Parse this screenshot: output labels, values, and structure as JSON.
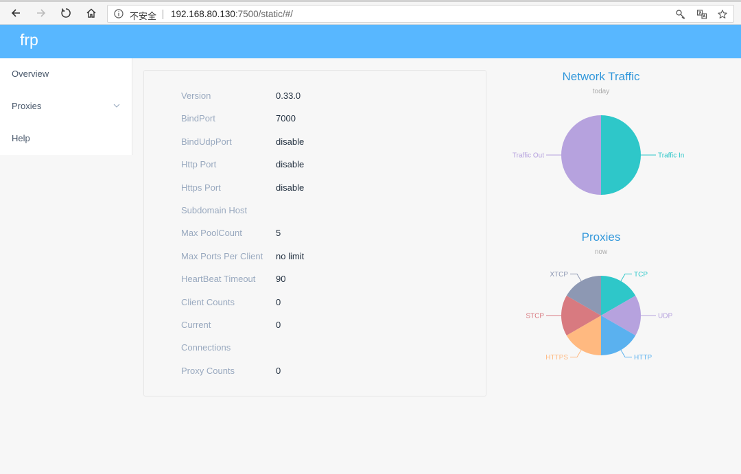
{
  "browser": {
    "security_label": "不安全",
    "url_host": "192.168.80.130",
    "url_rest": ":7500/static/#/"
  },
  "app": {
    "brand": "frp",
    "accent": "#58b7ff"
  },
  "sidebar": {
    "items": [
      {
        "label": "Overview"
      },
      {
        "label": "Proxies",
        "has_submenu": true
      },
      {
        "label": "Help"
      }
    ]
  },
  "server_info": [
    {
      "key": "Version",
      "value": "0.33.0"
    },
    {
      "key": "BindPort",
      "value": "7000"
    },
    {
      "key": "BindUdpPort",
      "value": "disable"
    },
    {
      "key": "Http Port",
      "value": "disable"
    },
    {
      "key": "Https Port",
      "value": "disable"
    },
    {
      "key": "Subdomain Host",
      "value": ""
    },
    {
      "key": "Max PoolCount",
      "value": "5"
    },
    {
      "key": "Max Ports Per Client",
      "value": "no limit"
    },
    {
      "key": "HeartBeat Timeout",
      "value": "90"
    },
    {
      "key": "Client Counts",
      "value": "0"
    },
    {
      "key": "Current",
      "value": "0"
    },
    {
      "key": "Connections",
      "value": ""
    },
    {
      "key": "Proxy Counts",
      "value": "0"
    }
  ],
  "chart_data": [
    {
      "type": "pie",
      "title": "Network Traffic",
      "subtitle": "today",
      "categories": [
        "Traffic In",
        "Traffic Out"
      ],
      "values": [
        1,
        1
      ],
      "colors": [
        "#2ec7c9",
        "#b6a2de"
      ]
    },
    {
      "type": "pie",
      "title": "Proxies",
      "subtitle": "now",
      "categories": [
        "TCP",
        "UDP",
        "HTTP",
        "HTTPS",
        "STCP",
        "XTCP"
      ],
      "values": [
        1,
        1,
        1,
        1,
        1,
        1
      ],
      "colors": [
        "#2ec7c9",
        "#b6a2de",
        "#5ab1ef",
        "#ffb980",
        "#d87a80",
        "#8d98b3"
      ]
    }
  ]
}
